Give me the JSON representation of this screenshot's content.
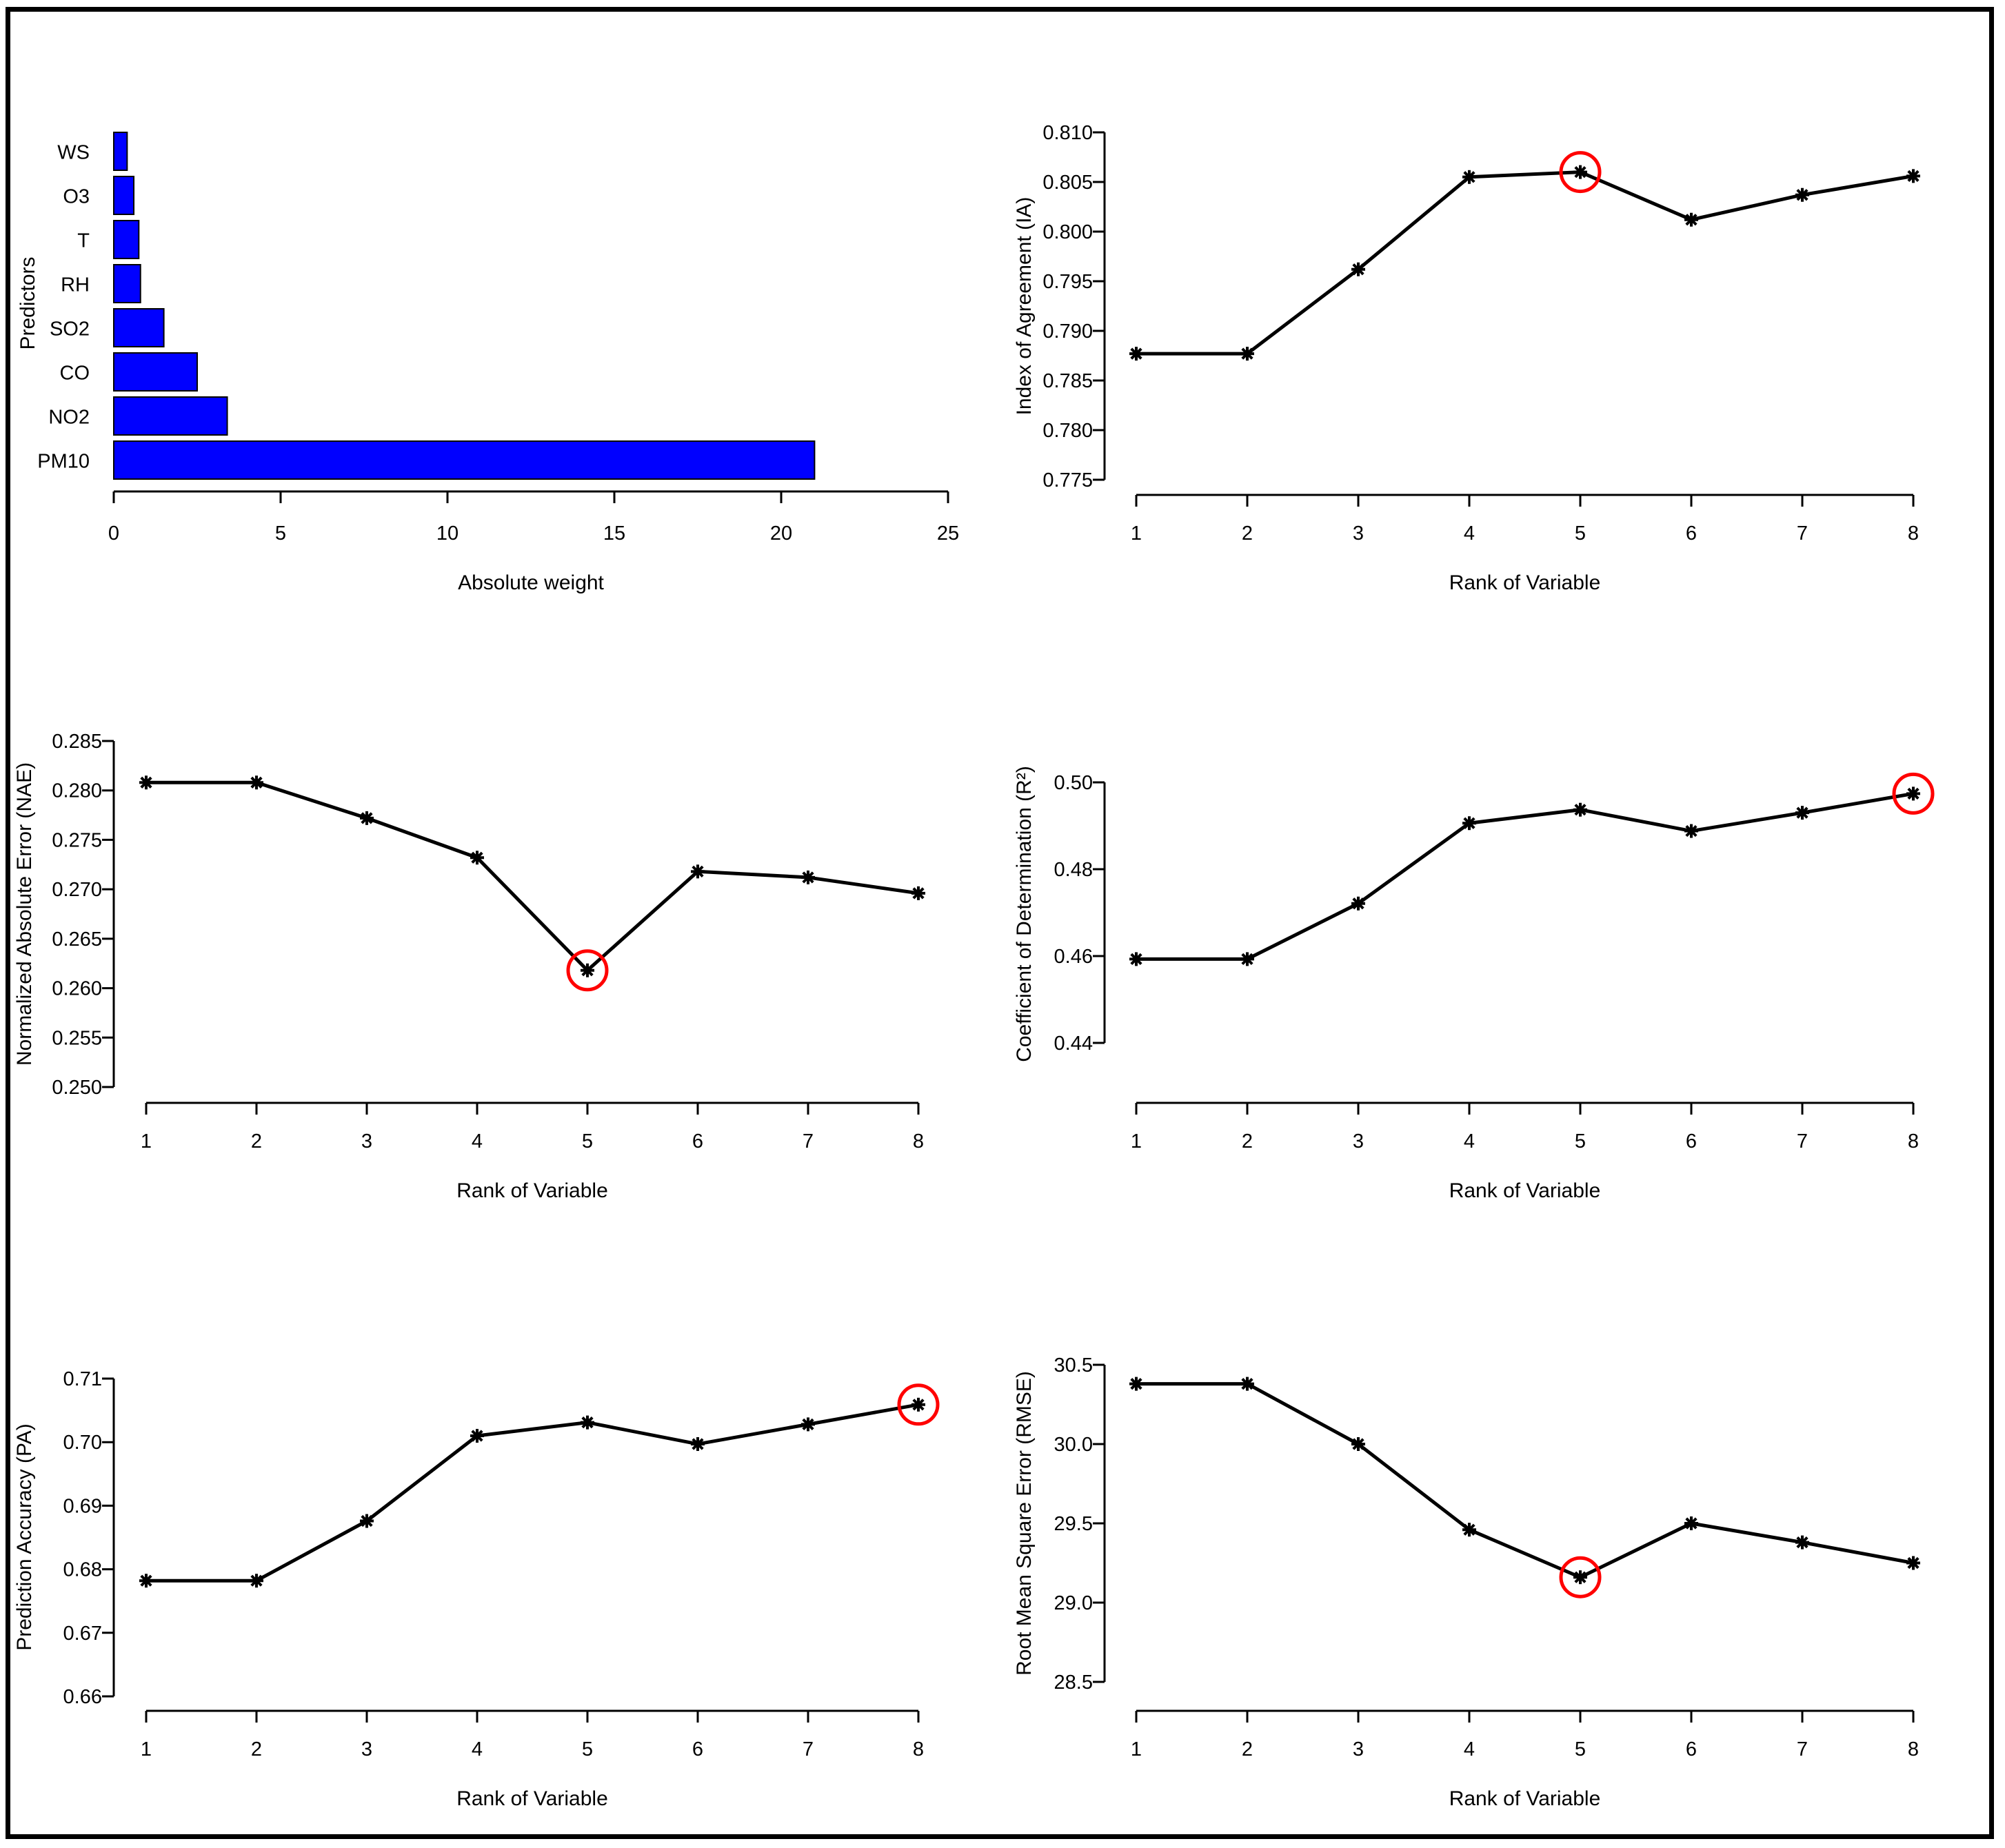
{
  "figure": {
    "panels": [
      "bar",
      "ia",
      "nae",
      "r2",
      "pa",
      "rmse"
    ]
  },
  "colors": {
    "bar": "#0000ff",
    "line": "#000000",
    "highlight": "#ff0000"
  },
  "chart_data": [
    {
      "id": "bar",
      "type": "bar",
      "orientation": "horizontal",
      "title": "",
      "xlabel": "Absolute weight",
      "ylabel": "Predictors",
      "categories": [
        "PM10",
        "NO2",
        "CO",
        "SO2",
        "RH",
        "T",
        "O3",
        "WS"
      ],
      "values": [
        21.0,
        3.4,
        2.5,
        1.5,
        0.8,
        0.75,
        0.6,
        0.4
      ],
      "xlim": [
        0,
        25
      ],
      "xticks": [
        "0",
        "5",
        "10",
        "15",
        "20",
        "25"
      ]
    },
    {
      "id": "ia",
      "type": "line",
      "xlabel": "Rank of Variable",
      "ylabel": "Index of Agreement (IA)",
      "x": [
        1,
        2,
        3,
        4,
        5,
        6,
        7,
        8
      ],
      "xticks": [
        "1",
        "2",
        "3",
        "4",
        "5",
        "6",
        "7",
        "8"
      ],
      "y": [
        0.7877,
        0.7877,
        0.7962,
        0.8055,
        0.806,
        0.8012,
        0.8037,
        0.8056
      ],
      "ylim": [
        0.775,
        0.81
      ],
      "yticks": [
        "0.775",
        "0.780",
        "0.785",
        "0.790",
        "0.795",
        "0.800",
        "0.805",
        "0.810"
      ],
      "highlight_x": 5
    },
    {
      "id": "nae",
      "type": "line",
      "xlabel": "Rank of Variable",
      "ylabel": "Normalized Absolute Error (NAE)",
      "x": [
        1,
        2,
        3,
        4,
        5,
        6,
        7,
        8
      ],
      "xticks": [
        "1",
        "2",
        "3",
        "4",
        "5",
        "6",
        "7",
        "8"
      ],
      "y": [
        0.2808,
        0.2808,
        0.2772,
        0.2732,
        0.2618,
        0.2718,
        0.2712,
        0.2696
      ],
      "ylim": [
        0.25,
        0.285
      ],
      "yticks": [
        "0.250",
        "0.255",
        "0.260",
        "0.265",
        "0.270",
        "0.275",
        "0.280",
        "0.285"
      ],
      "highlight_x": 5
    },
    {
      "id": "r2",
      "type": "line",
      "xlabel": "Rank of Variable",
      "ylabel": "Coefficient of Determination (R²)",
      "x": [
        1,
        2,
        3,
        4,
        5,
        6,
        7,
        8
      ],
      "xticks": [
        "1",
        "2",
        "3",
        "4",
        "5",
        "6",
        "7",
        "8"
      ],
      "y": [
        0.4593,
        0.4593,
        0.4721,
        0.4906,
        0.4937,
        0.4888,
        0.493,
        0.4974
      ],
      "ylim": [
        0.44,
        0.5
      ],
      "yticks": [
        "0.44",
        "0.46",
        "0.48",
        "0.50"
      ],
      "highlight_x": 8
    },
    {
      "id": "pa",
      "type": "line",
      "xlabel": "Rank of Variable",
      "ylabel": "Prediction Accuracy (PA)",
      "x": [
        1,
        2,
        3,
        4,
        5,
        6,
        7,
        8
      ],
      "xticks": [
        "1",
        "2",
        "3",
        "4",
        "5",
        "6",
        "7",
        "8"
      ],
      "y": [
        0.6782,
        0.6782,
        0.6876,
        0.701,
        0.7031,
        0.6997,
        0.7028,
        0.7059
      ],
      "ylim": [
        0.66,
        0.71
      ],
      "yticks": [
        "0.66",
        "0.67",
        "0.68",
        "0.69",
        "0.70",
        "0.71"
      ],
      "highlight_x": 8
    },
    {
      "id": "rmse",
      "type": "line",
      "xlabel": "Rank of Variable",
      "ylabel": "Root Mean Square Error (RMSE)",
      "x": [
        1,
        2,
        3,
        4,
        5,
        6,
        7,
        8
      ],
      "xticks": [
        "1",
        "2",
        "3",
        "4",
        "5",
        "6",
        "7",
        "8"
      ],
      "y": [
        30.38,
        30.38,
        30.0,
        29.46,
        29.16,
        29.5,
        29.38,
        29.25
      ],
      "ylim": [
        28.5,
        30.5
      ],
      "yticks": [
        "28.5",
        "29.0",
        "29.5",
        "30.0",
        "30.5"
      ],
      "highlight_x": 5
    }
  ]
}
